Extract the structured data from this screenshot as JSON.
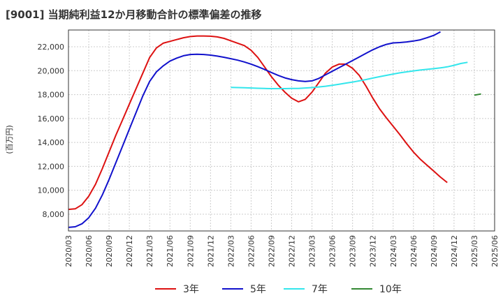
{
  "chart_data": {
    "type": "line",
    "title": "[9001]  当期純利益12か月移動合計の標準偏差の推移",
    "ylabel": "(百万円)",
    "xlabel": "",
    "ylim": [
      6600,
      23400
    ],
    "yticks": [
      8000,
      10000,
      12000,
      14000,
      16000,
      18000,
      20000,
      22000
    ],
    "ytick_labels": [
      "8,000",
      "10,000",
      "12,000",
      "14,000",
      "16,000",
      "18,000",
      "20,000",
      "22,000"
    ],
    "xticks": [
      "2020/03",
      "2020/06",
      "2020/09",
      "2020/12",
      "2021/03",
      "2021/06",
      "2021/09",
      "2021/12",
      "2022/03",
      "2022/06",
      "2022/09",
      "2022/12",
      "2023/03",
      "2023/06",
      "2023/09",
      "2023/12",
      "2024/03",
      "2024/06",
      "2024/09",
      "2024/12",
      "2025/03",
      "2025/06"
    ],
    "grid": true,
    "legend_position": "bottom",
    "series": [
      {
        "name": "3年",
        "color": "#dd1111",
        "start_month": 0,
        "values": [
          8400,
          8450,
          8800,
          9500,
          10500,
          11800,
          13200,
          14600,
          15900,
          17200,
          18500,
          19800,
          21100,
          21900,
          22300,
          22450,
          22600,
          22750,
          22850,
          22900,
          22900,
          22880,
          22820,
          22700,
          22500,
          22300,
          22100,
          21700,
          21100,
          20300,
          19500,
          18800,
          18200,
          17700,
          17400,
          17600,
          18200,
          19000,
          19800,
          20300,
          20550,
          20550,
          20200,
          19600,
          18700,
          17700,
          16800,
          16050,
          15350,
          14650,
          13900,
          13200,
          12600,
          12100,
          11600,
          11100,
          10650
        ]
      },
      {
        "name": "5年",
        "color": "#1111cc",
        "start_month": 0,
        "values": [
          6900,
          6950,
          7200,
          7700,
          8500,
          9600,
          10900,
          12300,
          13700,
          15100,
          16500,
          17900,
          19100,
          19900,
          20400,
          20800,
          21050,
          21250,
          21350,
          21370,
          21350,
          21300,
          21220,
          21120,
          21000,
          20880,
          20730,
          20550,
          20330,
          20100,
          19850,
          19600,
          19400,
          19250,
          19150,
          19100,
          19150,
          19350,
          19650,
          19950,
          20250,
          20550,
          20850,
          21150,
          21450,
          21750,
          22000,
          22200,
          22320,
          22350,
          22400,
          22480,
          22580,
          22750,
          22950,
          23250
        ]
      },
      {
        "name": "7年",
        "color": "#33e6ec",
        "start_month": 24,
        "values": [
          18600,
          18590,
          18570,
          18550,
          18530,
          18510,
          18500,
          18500,
          18500,
          18510,
          18520,
          18550,
          18590,
          18640,
          18700,
          18780,
          18870,
          18960,
          19050,
          19150,
          19260,
          19380,
          19500,
          19610,
          19720,
          19820,
          19900,
          19980,
          20050,
          20110,
          20170,
          20230,
          20320,
          20450,
          20600,
          20700
        ]
      },
      {
        "name": "10年",
        "color": "#338833",
        "start_month": 60,
        "values": [
          17950,
          18050
        ]
      }
    ]
  }
}
